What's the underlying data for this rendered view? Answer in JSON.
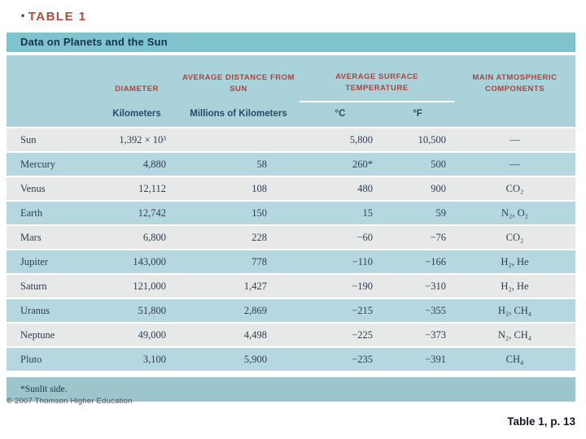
{
  "page": {
    "bullet": "•",
    "table_tag": "TABLE 1",
    "copyright": "© 2007 Thomson Higher Education",
    "caption": "Table 1, p. 13"
  },
  "colors": {
    "title_bar_teal": "#7fc3cd",
    "header_band_blue": "#a9d2db",
    "row_blue": "#b5d8e0",
    "row_gray": "#e7e9e8",
    "footnote_teal": "#9dc5cc",
    "header_red": "#a8453c",
    "text_navy": "#173251"
  },
  "table": {
    "title": "Data on Planets and the Sun",
    "group_headers": {
      "diameter": "DIAMETER",
      "distance": "AVERAGE DISTANCE FROM SUN",
      "temperature": "AVERAGE SURFACE TEMPERATURE",
      "atmosphere": "MAIN ATMOSPHERIC COMPONENTS"
    },
    "sub_headers": {
      "diameter": "Kilometers",
      "distance": "Millions of Kilometers",
      "temp_c": "°C",
      "temp_f": "°F"
    },
    "rows": [
      {
        "name": "Sun",
        "diameter": "1,392 × 10³",
        "distance": "",
        "temp_c": "5,800",
        "temp_f": "10,500",
        "atmosphere": "—"
      },
      {
        "name": "Mercury",
        "diameter": "4,880",
        "distance": "58",
        "temp_c": "260*",
        "temp_f": "500",
        "atmosphere": "—"
      },
      {
        "name": "Venus",
        "diameter": "12,112",
        "distance": "108",
        "temp_c": "480",
        "temp_f": "900",
        "atmosphere": "CO₂"
      },
      {
        "name": "Earth",
        "diameter": "12,742",
        "distance": "150",
        "temp_c": "15",
        "temp_f": "59",
        "atmosphere": "N₂, O₂"
      },
      {
        "name": "Mars",
        "diameter": "6,800",
        "distance": "228",
        "temp_c": "−60",
        "temp_f": "−76",
        "atmosphere": "CO₂"
      },
      {
        "name": "Jupiter",
        "diameter": "143,000",
        "distance": "778",
        "temp_c": "−110",
        "temp_f": "−166",
        "atmosphere": "H₂, He"
      },
      {
        "name": "Saturn",
        "diameter": "121,000",
        "distance": "1,427",
        "temp_c": "−190",
        "temp_f": "−310",
        "atmosphere": "H₂, He"
      },
      {
        "name": "Uranus",
        "diameter": "51,800",
        "distance": "2,869",
        "temp_c": "−215",
        "temp_f": "−355",
        "atmosphere": "H₂, CH₄"
      },
      {
        "name": "Neptune",
        "diameter": "49,000",
        "distance": "4,498",
        "temp_c": "−225",
        "temp_f": "−373",
        "atmosphere": "N₂, CH₄"
      },
      {
        "name": "Pluto",
        "diameter": "3,100",
        "distance": "5,900",
        "temp_c": "−235",
        "temp_f": "−391",
        "atmosphere": "CH₄"
      }
    ],
    "footnote": "*Sunlit side."
  }
}
